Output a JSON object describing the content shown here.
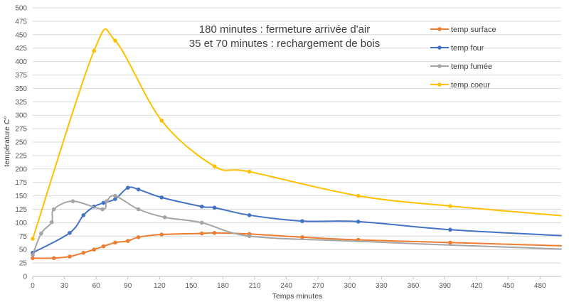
{
  "chart_data": {
    "type": "line",
    "title": "",
    "annotations": [
      "180 minutes : fermeture arrivée d'air",
      "35 et 70 minutes : rechargement de bois"
    ],
    "xlabel": "Temps minutes",
    "ylabel": "température C°",
    "xlim": [
      0,
      500
    ],
    "ylim": [
      0,
      500
    ],
    "x_ticks": [
      0,
      30,
      60,
      90,
      120,
      150,
      180,
      210,
      240,
      270,
      300,
      330,
      360,
      390,
      420,
      450,
      480
    ],
    "y_ticks": [
      0,
      25,
      50,
      75,
      100,
      125,
      150,
      175,
      200,
      225,
      250,
      275,
      300,
      325,
      350,
      375,
      400,
      425,
      450,
      475,
      500
    ],
    "grid": "horizontal",
    "legend_position": "right",
    "series": [
      {
        "name": "temp surface",
        "color": "#ED7D31",
        "markers": [
          [
            0,
            34
          ],
          [
            20,
            34
          ],
          [
            35,
            37
          ],
          [
            48,
            44
          ],
          [
            58,
            50
          ],
          [
            67,
            56
          ],
          [
            78,
            63
          ],
          [
            90,
            66
          ],
          [
            100,
            73
          ],
          [
            122,
            78
          ],
          [
            160,
            80
          ],
          [
            172,
            81
          ],
          [
            205,
            79
          ],
          [
            255,
            73
          ],
          [
            308,
            68
          ],
          [
            395,
            63
          ]
        ],
        "line": [
          [
            0,
            34
          ],
          [
            20,
            34
          ],
          [
            35,
            37
          ],
          [
            48,
            44
          ],
          [
            58,
            50
          ],
          [
            67,
            56
          ],
          [
            78,
            63
          ],
          [
            90,
            66
          ],
          [
            100,
            73
          ],
          [
            122,
            78
          ],
          [
            160,
            80
          ],
          [
            172,
            81
          ],
          [
            205,
            79
          ],
          [
            255,
            73
          ],
          [
            308,
            68
          ],
          [
            395,
            63
          ],
          [
            500,
            57
          ]
        ]
      },
      {
        "name": "temp four",
        "color": "#4472C4",
        "markers": [
          [
            0,
            44
          ],
          [
            35,
            81
          ],
          [
            48,
            114
          ],
          [
            58,
            130
          ],
          [
            67,
            137
          ],
          [
            78,
            144
          ],
          [
            90,
            165
          ],
          [
            100,
            162
          ],
          [
            122,
            147
          ],
          [
            160,
            130
          ],
          [
            172,
            128
          ],
          [
            205,
            114
          ],
          [
            255,
            103
          ],
          [
            308,
            102
          ],
          [
            395,
            87
          ]
        ],
        "line": [
          [
            0,
            44
          ],
          [
            35,
            81
          ],
          [
            48,
            114
          ],
          [
            58,
            130
          ],
          [
            67,
            137
          ],
          [
            78,
            144
          ],
          [
            90,
            165
          ],
          [
            100,
            162
          ],
          [
            122,
            147
          ],
          [
            160,
            130
          ],
          [
            172,
            128
          ],
          [
            205,
            114
          ],
          [
            255,
            103
          ],
          [
            308,
            102
          ],
          [
            395,
            87
          ],
          [
            500,
            76
          ]
        ]
      },
      {
        "name": "temp fumée",
        "color": "#A5A5A5",
        "markers": [
          [
            0,
            40
          ],
          [
            8,
            80
          ],
          [
            18,
            101
          ],
          [
            20,
            125
          ],
          [
            38,
            140
          ],
          [
            66,
            125
          ],
          [
            70,
            140
          ],
          [
            78,
            150
          ],
          [
            100,
            125
          ],
          [
            125,
            110
          ],
          [
            160,
            100
          ],
          [
            205,
            75
          ]
        ],
        "line": [
          [
            0,
            40
          ],
          [
            8,
            80
          ],
          [
            18,
            101
          ],
          [
            20,
            125
          ],
          [
            38,
            140
          ],
          [
            66,
            125
          ],
          [
            70,
            140
          ],
          [
            78,
            150
          ],
          [
            100,
            125
          ],
          [
            125,
            110
          ],
          [
            160,
            100
          ],
          [
            205,
            75
          ],
          [
            300,
            66
          ],
          [
            400,
            58
          ],
          [
            500,
            51
          ]
        ]
      },
      {
        "name": "temp coeur",
        "color": "#FFC000",
        "markers": [
          [
            0,
            70
          ],
          [
            58,
            420
          ],
          [
            78,
            439
          ],
          [
            122,
            290
          ],
          [
            172,
            205
          ],
          [
            205,
            195
          ],
          [
            308,
            150
          ],
          [
            395,
            131
          ]
        ],
        "line": [
          [
            0,
            70
          ],
          [
            58,
            420
          ],
          [
            78,
            439
          ],
          [
            122,
            290
          ],
          [
            172,
            205
          ],
          [
            205,
            195
          ],
          [
            308,
            150
          ],
          [
            395,
            131
          ],
          [
            500,
            113
          ]
        ]
      }
    ]
  }
}
